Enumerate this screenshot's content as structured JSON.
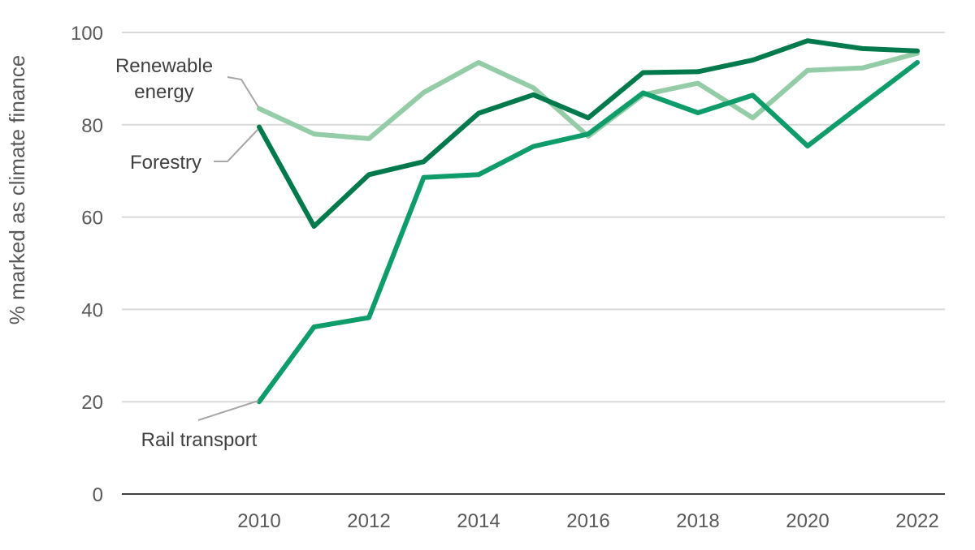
{
  "chart_data": {
    "type": "line",
    "title": "",
    "xlabel": "",
    "ylabel": "% marked as climate finance",
    "ylim": [
      0,
      100
    ],
    "yticks": [
      0,
      20,
      40,
      60,
      80,
      100
    ],
    "xticks": [
      2010,
      2012,
      2014,
      2016,
      2018,
      2020,
      2022
    ],
    "x": [
      2010,
      2011,
      2012,
      2013,
      2014,
      2015,
      2016,
      2017,
      2018,
      2019,
      2020,
      2021,
      2022
    ],
    "grid": true,
    "legend": "direct labels",
    "series": [
      {
        "name": "Renewable energy",
        "label_lines": [
          "Renewable",
          "energy"
        ],
        "color": "#93cca7",
        "values": [
          83.5,
          78,
          77,
          87,
          93.5,
          88,
          77.5,
          86.5,
          89,
          81.5,
          91.8,
          92.3,
          95.5
        ]
      },
      {
        "name": "Forestry",
        "label_lines": [
          "Forestry"
        ],
        "color": "#007a4c",
        "values": [
          79.5,
          58,
          69.2,
          72,
          82.5,
          86.5,
          81.5,
          91.3,
          91.5,
          94,
          98.2,
          96.5,
          96
        ]
      },
      {
        "name": "Rail transport",
        "label_lines": [
          "Rail transport"
        ],
        "color": "#0f9c6b",
        "values": [
          20,
          36.2,
          38.2,
          68.6,
          69.2,
          75.3,
          78,
          86.9,
          82.6,
          86.4,
          75.4,
          84.5,
          93.5
        ]
      }
    ]
  }
}
